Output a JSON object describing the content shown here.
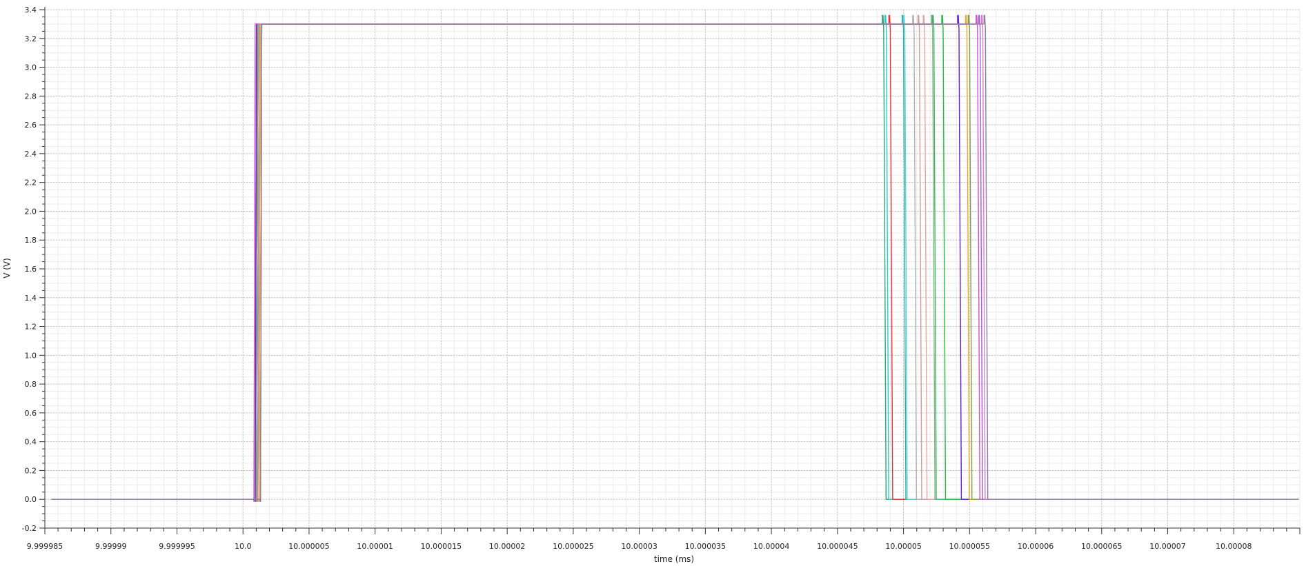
{
  "chart_data": {
    "type": "line",
    "title": "",
    "xlabel": "time (ms)",
    "ylabel": "V (V)",
    "xlim": [
      9.999985,
      10.00008
    ],
    "ylim": [
      -0.2,
      3.4
    ],
    "grid": true,
    "legend": "none",
    "x_ticks": [
      "9.999985",
      "9.99999",
      "9.999995",
      "10.0",
      "10.000005",
      "10.00001",
      "10.000015",
      "10.00002",
      "10.000025",
      "10.00003",
      "10.000035",
      "10.00004",
      "10.000045",
      "10.00005",
      "10.000055",
      "10.00006",
      "10.000065",
      "10.00007",
      "10.00008"
    ],
    "x_tick_values": [
      9.999985,
      9.99999,
      9.999995,
      10.0,
      10.000005,
      10.00001,
      10.000015,
      10.00002,
      10.000025,
      10.00003,
      10.000035,
      10.00004,
      10.000045,
      10.00005,
      10.000055,
      10.00006,
      10.000065,
      10.00007,
      10.000075
    ],
    "y_ticks": [
      "-0.2",
      "0.0",
      "0.2",
      "0.4",
      "0.6",
      "0.8",
      "1.0",
      "1.2",
      "1.4",
      "1.6",
      "1.8",
      "2.0",
      "2.2",
      "2.4",
      "2.6",
      "2.8",
      "3.0",
      "3.2",
      "3.4"
    ],
    "y_tick_values": [
      -0.2,
      0.0,
      0.2,
      0.4,
      0.6,
      0.8,
      1.0,
      1.2,
      1.4,
      1.6,
      1.8,
      2.0,
      2.2,
      2.4,
      2.6,
      2.8,
      3.0,
      3.2,
      3.4
    ],
    "low_level": 0.0,
    "high_level": 3.3,
    "overshoot_level": 3.36,
    "series": [
      {
        "color": "#2aa876",
        "rise": 10.000001,
        "fall": 10.0000485
      },
      {
        "color": "#30c9c9",
        "rise": 10.0000011,
        "fall": 10.0000487
      },
      {
        "color": "#e83535",
        "rise": 10.0000009,
        "fall": 10.000049
      },
      {
        "color": "#20b2aa",
        "rise": 10.0000012,
        "fall": 10.00005
      },
      {
        "color": "#66cdd0",
        "rise": 10.000001,
        "fall": 10.0000501
      },
      {
        "color": "#b0b0b0",
        "rise": 10.0000011,
        "fall": 10.0000508
      },
      {
        "color": "#d29a9a",
        "rise": 10.0000009,
        "fall": 10.0000512
      },
      {
        "color": "#e6a6a6",
        "rise": 10.0000013,
        "fall": 10.0000516
      },
      {
        "color": "#8ab87a",
        "rise": 10.000001,
        "fall": 10.0000522
      },
      {
        "color": "#3cb371",
        "rise": 10.0000012,
        "fall": 10.0000523
      },
      {
        "color": "#22bb44",
        "rise": 10.0000011,
        "fall": 10.000053
      },
      {
        "color": "#5a1fd6",
        "rise": 10.0000009,
        "fall": 10.0000542
      },
      {
        "color": "#f5a623",
        "rise": 10.0000012,
        "fall": 10.0000548
      },
      {
        "color": "#7aa04a",
        "rise": 10.000001,
        "fall": 10.000055
      },
      {
        "color": "#d44fd4",
        "rise": 10.0000008,
        "fall": 10.0000556
      },
      {
        "color": "#9966cc",
        "rise": 10.0000013,
        "fall": 10.0000558
      },
      {
        "color": "#e07bd0",
        "rise": 10.0000011,
        "fall": 10.000056
      },
      {
        "color": "#8c7f99",
        "rise": 10.0000013,
        "fall": 10.0000562
      }
    ]
  }
}
